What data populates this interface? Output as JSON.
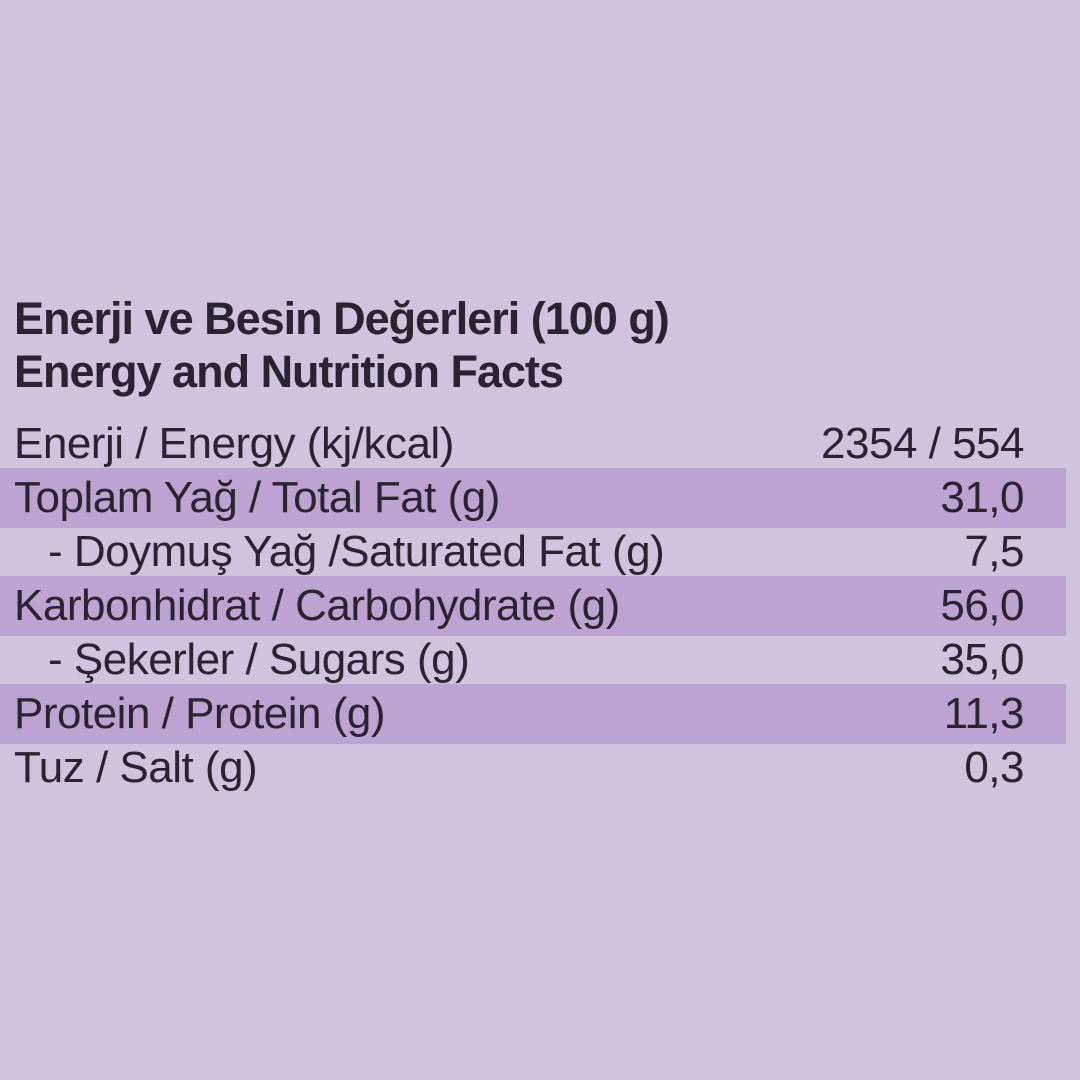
{
  "page": {
    "background_color": "#d0c3de",
    "stripe_color": "#bda3d1",
    "text_color": "#2a2430"
  },
  "title": {
    "line1": "Enerji ve Besin Değerleri (100 g)",
    "line2": "Energy and Nutrition Facts"
  },
  "table": {
    "rows": [
      {
        "label": "Enerji / Energy (kj/kcal)",
        "value": "2354 / 554",
        "striped": false,
        "indent": false
      },
      {
        "label": "Toplam Yağ / Total Fat (g)",
        "value": "31,0",
        "striped": true,
        "indent": false
      },
      {
        "label": "- Doymuş Yağ /Saturated Fat (g)",
        "value": "7,5",
        "striped": false,
        "indent": true
      },
      {
        "label": "Karbonhidrat / Carbohydrate (g)",
        "value": "56,0",
        "striped": true,
        "indent": false
      },
      {
        "label": "- Şekerler / Sugars (g)",
        "value": "35,0",
        "striped": false,
        "indent": true
      },
      {
        "label": "Protein / Protein (g)",
        "value": "11,3",
        "striped": true,
        "indent": false
      },
      {
        "label": "Tuz / Salt (g)",
        "value": "0,3",
        "striped": false,
        "indent": false
      }
    ]
  }
}
